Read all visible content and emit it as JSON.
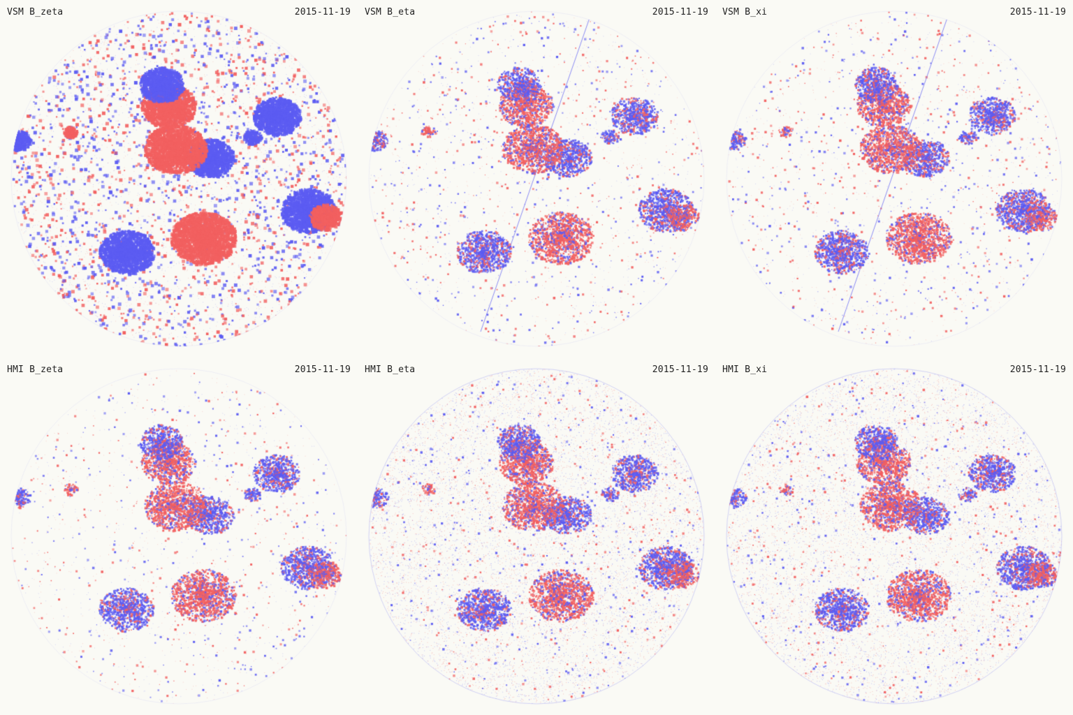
{
  "panels": [
    {
      "title": "VSM B_zeta",
      "date": "2015-11-19",
      "style": "dense"
    },
    {
      "title": "VSM B_eta",
      "date": "2015-11-19",
      "style": "sparse_line"
    },
    {
      "title": "VSM B_xi",
      "date": "2015-11-19",
      "style": "sparse_line"
    },
    {
      "title": "HMI B_zeta",
      "date": "2015-11-19",
      "style": "sparse"
    },
    {
      "title": "HMI B_eta",
      "date": "2015-11-19",
      "style": "noisy"
    },
    {
      "title": "HMI B_xi",
      "date": "2015-11-19",
      "style": "noisy"
    }
  ],
  "colors": {
    "background": "#fafaf5",
    "positive": "#f26060",
    "negative": "#5c5cf2",
    "text": "#222222"
  }
}
